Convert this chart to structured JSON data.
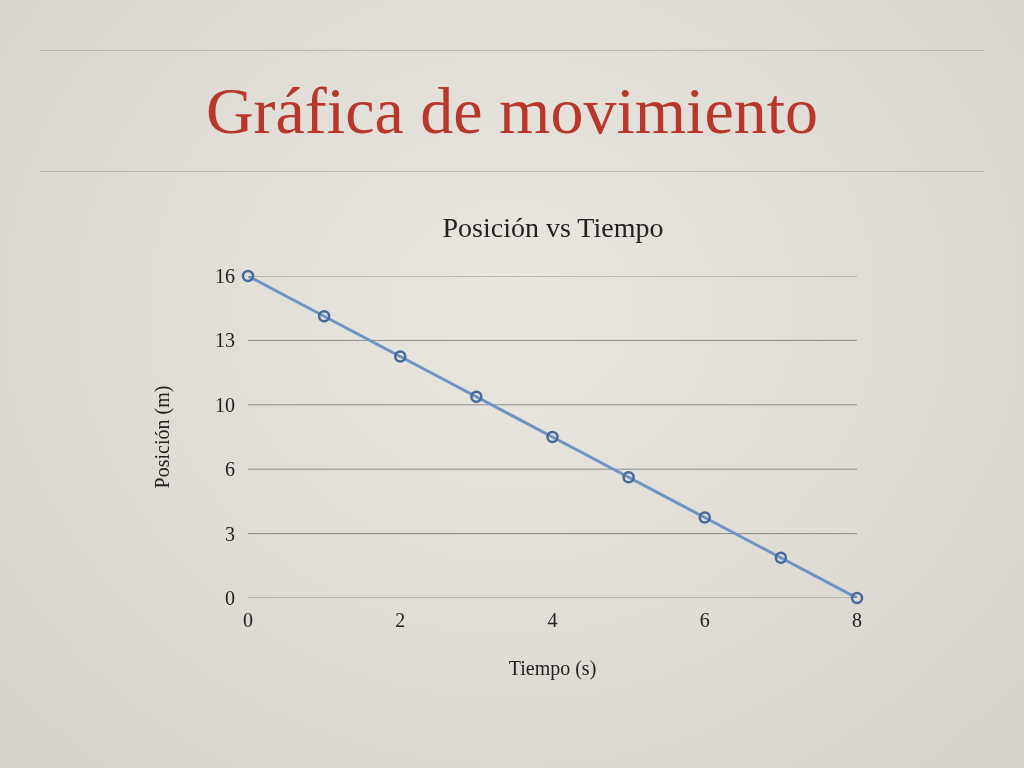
{
  "chart_data": {
    "type": "line",
    "title": "Gráfica de movimiento",
    "subtitle": "Posición vs Tiempo",
    "xlabel": "Tiempo (s)",
    "ylabel": "Posición (m)",
    "x": [
      0,
      1,
      2,
      3,
      4,
      5,
      6,
      7,
      8
    ],
    "series": [
      {
        "color": "#6f93c0",
        "values": [
          16,
          14,
          12,
          10,
          8,
          6,
          4,
          2,
          0
        ]
      }
    ],
    "xlim": [
      0,
      8
    ],
    "xticks": [
      0,
      2,
      4,
      6,
      8
    ],
    "ylim": [
      0,
      16
    ],
    "yticks": [
      0,
      {
        "value": 3.2,
        "label": "3"
      },
      {
        "value": 6.4,
        "label": "6"
      },
      {
        "value": 9.6,
        "label": "10"
      },
      {
        "value": 12.8,
        "label": "13"
      },
      16
    ],
    "grid": "y",
    "marker": "circle",
    "line_style": "solid"
  }
}
